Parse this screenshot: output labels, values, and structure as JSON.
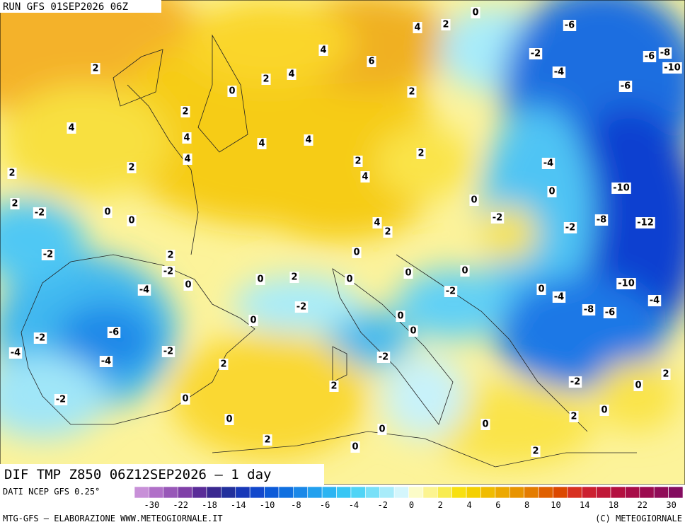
{
  "header": {
    "run": "RUN GFS 01SEP2026 06Z"
  },
  "title": "DIF TMP Z850 06Z12SEP2026 – 1 day",
  "footer": {
    "source": "DATI NCEP GFS 0.25°",
    "credit": "MTG-GFS – ELABORAZIONE WWW.METEOGIORNALE.IT",
    "copyright": "(C) METEOGIORNALE"
  },
  "colorbar": {
    "labels": [
      -30,
      -22,
      -18,
      -14,
      -10,
      -8,
      -6,
      -4,
      -2,
      0,
      2,
      4,
      6,
      8,
      10,
      14,
      18,
      22,
      30
    ],
    "colors": [
      "#c890d8",
      "#b070c8",
      "#9858b8",
      "#8040a8",
      "#5a2c98",
      "#3a2890",
      "#22309c",
      "#1838b8",
      "#1248cc",
      "#0c5ad8",
      "#1070e0",
      "#1a88e8",
      "#22a0ee",
      "#2cb4f2",
      "#38c6f4",
      "#50d4f6",
      "#78e0f8",
      "#a8ecfa",
      "#d4f6fc",
      "#fcfcc8",
      "#fcf490",
      "#f8ec50",
      "#f8e010",
      "#f4d000",
      "#f0bc00",
      "#eca800",
      "#e89400",
      "#e47c00",
      "#e06000",
      "#dc4800",
      "#d83020",
      "#cc2030",
      "#c01838",
      "#b41040",
      "#a80c48",
      "#9c0c50",
      "#900c58",
      "#840c60"
    ]
  },
  "contour_labels": [
    2,
    4,
    2,
    2,
    2,
    4,
    4,
    2,
    0,
    2,
    4,
    4,
    6,
    4,
    2,
    0,
    -6,
    -2,
    -4,
    -6,
    -8,
    -10,
    -6,
    2,
    4,
    4,
    2,
    4,
    2,
    -4,
    0,
    -10,
    -8,
    -12,
    -2,
    0,
    -2,
    -2,
    0,
    0,
    4,
    2,
    0,
    -2,
    2,
    -2,
    0,
    0,
    2,
    0,
    0,
    0,
    0,
    -4,
    -10,
    -4,
    -8,
    -6,
    -4,
    -2,
    0,
    0,
    -2,
    0,
    -6,
    -2,
    -4,
    -2,
    -4,
    2,
    -2,
    2,
    -2,
    0,
    2,
    -2,
    0,
    0,
    2,
    0,
    0,
    0,
    2,
    0,
    2
  ]
}
